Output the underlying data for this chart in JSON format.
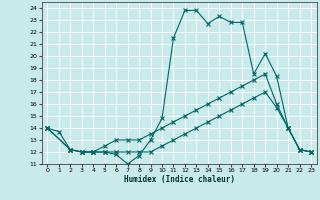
{
  "xlabel": "Humidex (Indice chaleur)",
  "ylabel": "",
  "background_color": "#c8eaea",
  "grid_color": "#b0d8d8",
  "line_color": "#006666",
  "xlim": [
    -0.5,
    23.5
  ],
  "ylim": [
    11,
    24.5
  ],
  "xticks": [
    0,
    1,
    2,
    3,
    4,
    5,
    6,
    7,
    8,
    9,
    10,
    11,
    12,
    13,
    14,
    15,
    16,
    17,
    18,
    19,
    20,
    21,
    22,
    23
  ],
  "yticks": [
    11,
    12,
    13,
    14,
    15,
    16,
    17,
    18,
    19,
    20,
    21,
    22,
    23,
    24
  ],
  "line1_x": [
    0,
    1,
    2,
    3,
    4,
    5,
    6,
    7,
    8,
    9,
    10,
    11,
    12,
    13,
    14,
    15,
    16,
    17,
    18,
    19,
    20,
    21,
    22,
    23
  ],
  "line1_y": [
    14,
    13.7,
    12.2,
    12,
    12,
    12,
    11.8,
    11,
    11.7,
    13,
    14.8,
    21.5,
    23.8,
    23.8,
    22.7,
    23.3,
    22.8,
    22.8,
    18.5,
    20.2,
    18.3,
    14,
    12.2,
    12
  ],
  "line2_x": [
    0,
    2,
    3,
    4,
    5,
    6,
    7,
    8,
    9,
    10,
    11,
    12,
    13,
    14,
    15,
    16,
    17,
    18,
    19,
    20,
    21,
    22,
    23
  ],
  "line2_y": [
    14,
    12.2,
    12,
    12,
    12.5,
    13,
    13,
    13,
    13.5,
    14,
    14.5,
    15,
    15.5,
    16,
    16.5,
    17,
    17.5,
    18,
    18.5,
    16,
    14,
    12.2,
    12
  ],
  "line3_x": [
    0,
    2,
    3,
    4,
    5,
    6,
    7,
    8,
    9,
    10,
    11,
    12,
    13,
    14,
    15,
    16,
    17,
    18,
    19,
    20,
    21,
    22,
    23
  ],
  "line3_y": [
    14,
    12.2,
    12,
    12,
    12,
    12,
    12,
    12,
    12,
    12.5,
    13,
    13.5,
    14,
    14.5,
    15,
    15.5,
    16,
    16.5,
    17,
    15.7,
    14,
    12.2,
    12
  ]
}
